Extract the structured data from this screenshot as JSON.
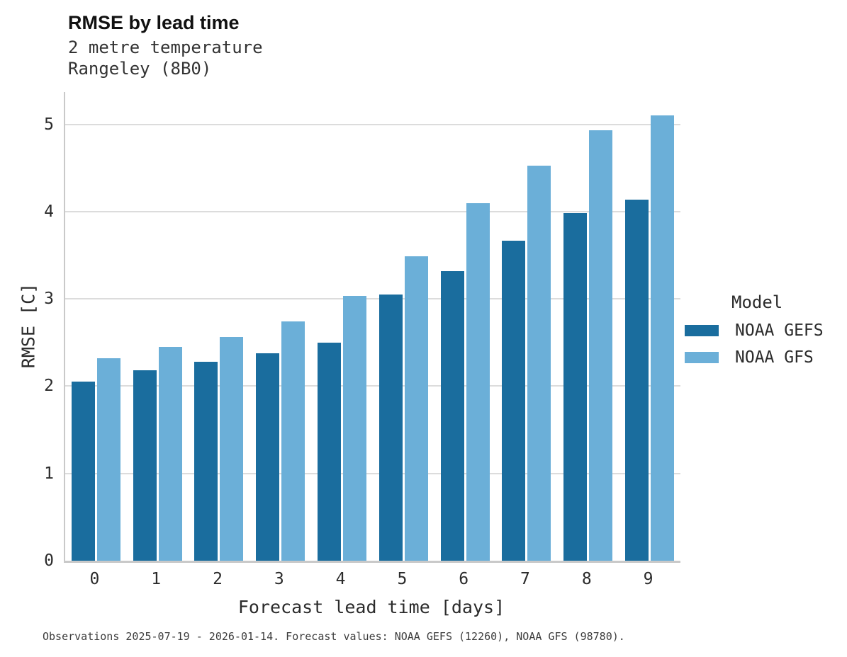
{
  "header": {
    "title": "RMSE by lead time",
    "subtitle_line1": "2 metre temperature",
    "subtitle_line2": "Rangeley (8B0)"
  },
  "legend": {
    "title": "Model"
  },
  "footer": {
    "caption": "Observations 2025-07-19 - 2026-01-14. Forecast values: NOAA GEFS (12260), NOAA GFS (98780)."
  },
  "colors": {
    "gefs_dark_blue": "#1a6d9e",
    "gfs_light_blue": "#6bafd8",
    "gridline_gray": "#dcdcdc",
    "spine_gray": "#c9c9c9"
  },
  "chart_data": {
    "type": "bar",
    "title": "RMSE by lead time",
    "subtitle": [
      "2 metre temperature",
      "Rangeley (8B0)"
    ],
    "categories": [
      "0",
      "1",
      "2",
      "3",
      "4",
      "5",
      "6",
      "7",
      "8",
      "9"
    ],
    "series": [
      {
        "name": "NOAA GEFS",
        "color": "#1a6d9e",
        "values": [
          2.05,
          2.18,
          2.28,
          2.38,
          2.5,
          3.05,
          3.32,
          3.67,
          3.98,
          4.14
        ]
      },
      {
        "name": "NOAA GFS",
        "color": "#6bafd8",
        "values": [
          2.32,
          2.45,
          2.56,
          2.74,
          3.03,
          3.49,
          4.1,
          4.53,
          4.93,
          5.1
        ]
      }
    ],
    "xlabel": "Forecast lead time [days]",
    "ylabel": "RMSE [C]",
    "yticks": [
      0,
      1,
      2,
      3,
      4,
      5
    ],
    "ylim": [
      0,
      5.37
    ],
    "grid": "horizontal",
    "legend_position": "right",
    "legend_title": "Model"
  }
}
